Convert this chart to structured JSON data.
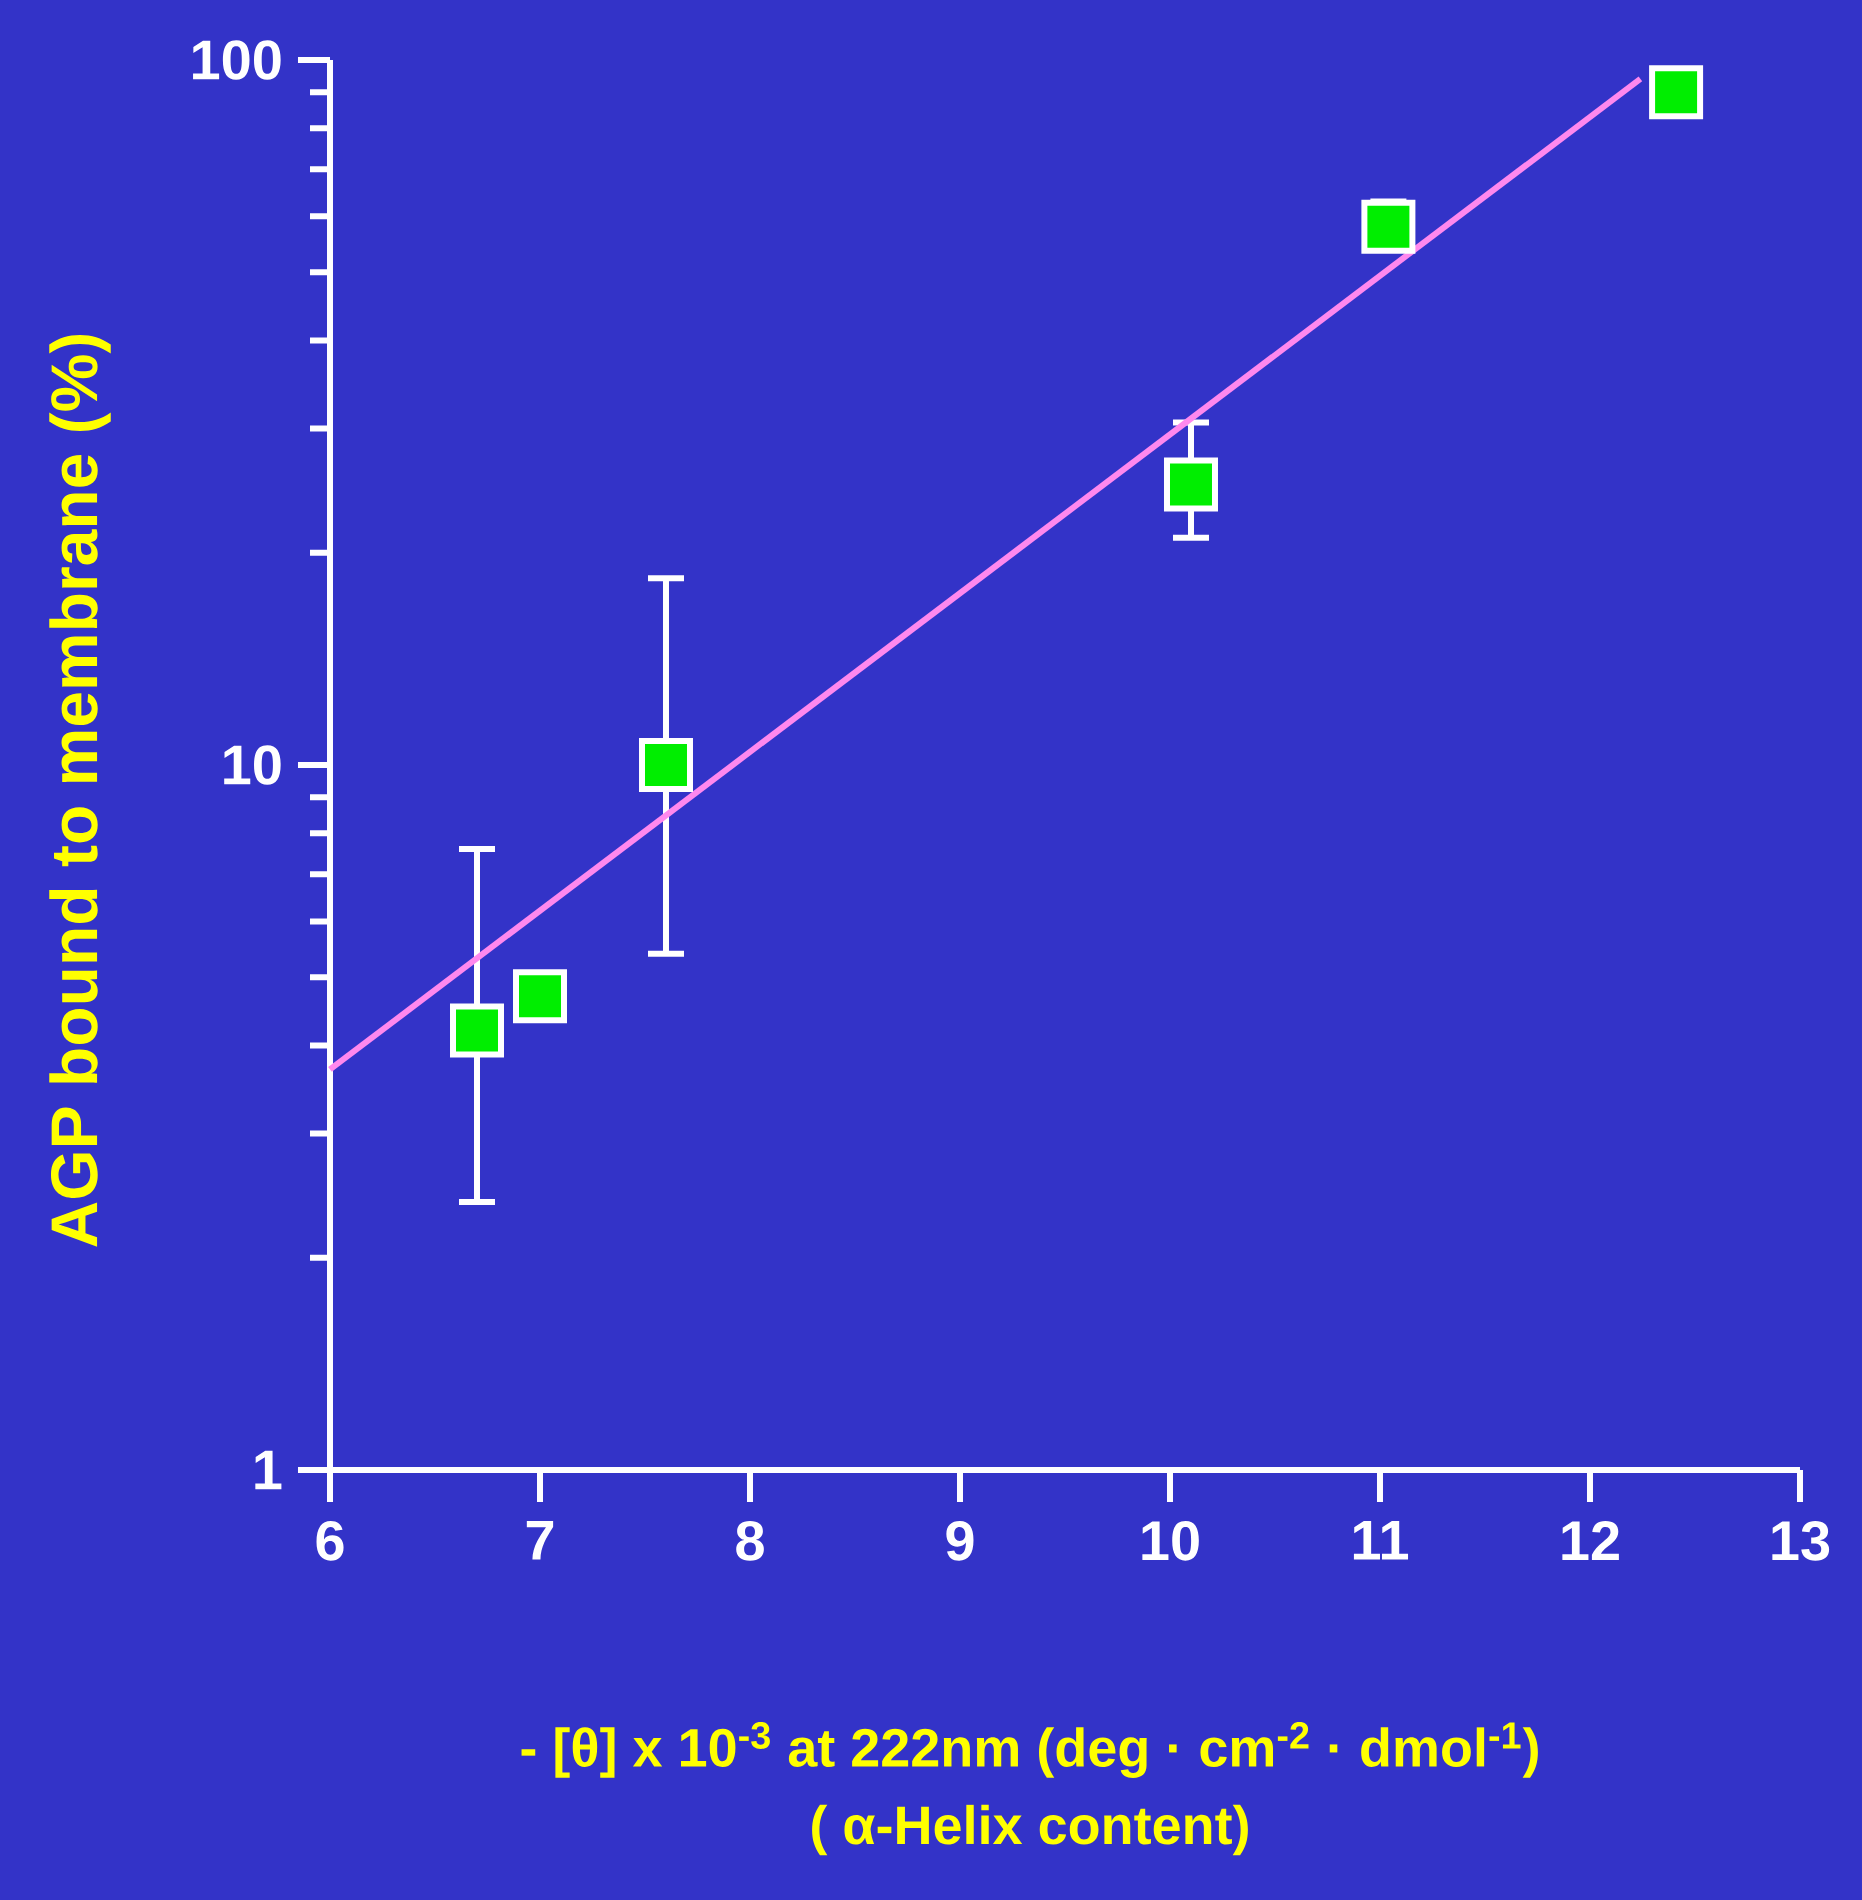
{
  "chart_data": {
    "type": "scatter",
    "xlabel": "- [θ] x 10$^{-3}$ at 222nm (deg · cm$^{-2}$ · dmol$^{-1}$)",
    "ylabel": "AGP bound to membrane (%)",
    "annotations": [
      "( α-Helix content)"
    ],
    "log": "y",
    "xlim": [
      6,
      13
    ],
    "xticks": [
      6,
      7,
      8,
      9,
      10,
      11,
      12,
      13
    ],
    "ylim": [
      1,
      100
    ],
    "yticks": [
      1,
      10,
      100
    ],
    "series": [
      {
        "color": "#00ee00",
        "marker": "square",
        "x": [
          6.7,
          7.0,
          7.6,
          10.1,
          11.04,
          12.41
        ],
        "values": [
          4.2,
          4.7,
          10,
          25,
          58,
          90
        ],
        "errors": [
          [
            2.4,
            7.6
          ],
          null,
          [
            5.4,
            18.4
          ],
          [
            21,
            30.6
          ],
          [
            55,
            63
          ],
          null
        ]
      },
      {
        "type": "line",
        "color": "#ff88ee",
        "marker": "none",
        "x": [
          6,
          12.24
        ],
        "values": [
          3.7,
          94
        ]
      }
    ]
  }
}
